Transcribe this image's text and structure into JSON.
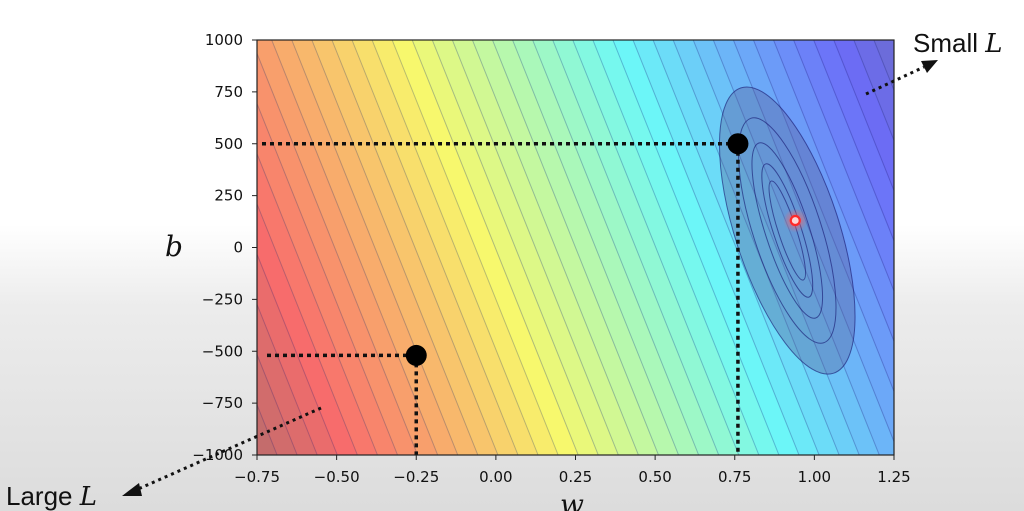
{
  "chart_data": {
    "type": "heatmap",
    "title": "",
    "xlabel": "w",
    "ylabel": "b",
    "xlim": [
      -0.75,
      1.25
    ],
    "ylim": [
      -1000,
      1000
    ],
    "x_ticks": [
      "−0.75",
      "−0.50",
      "−0.25",
      "0.00",
      "0.25",
      "0.50",
      "0.75",
      "1.00",
      "1.25"
    ],
    "x_tick_values": [
      -0.75,
      -0.5,
      -0.25,
      0,
      0.25,
      0.5,
      0.75,
      1.0,
      1.25
    ],
    "y_ticks": [
      "1000",
      "750",
      "500",
      "250",
      "0",
      "−250",
      "−500",
      "−750",
      "−1000"
    ],
    "y_tick_values": [
      1000,
      750,
      500,
      250,
      0,
      -250,
      -500,
      -750,
      -1000
    ],
    "colormap": "jet",
    "minimum": {
      "w": 0.94,
      "b": 130,
      "color": "#ff2a2a"
    },
    "points": [
      {
        "w": 0.76,
        "b": 500
      },
      {
        "w": -0.25,
        "b": -520
      }
    ],
    "annotations": {
      "small": {
        "prefix": "Small ",
        "var": "L"
      },
      "large": {
        "prefix": "Large ",
        "var": "L"
      }
    }
  }
}
